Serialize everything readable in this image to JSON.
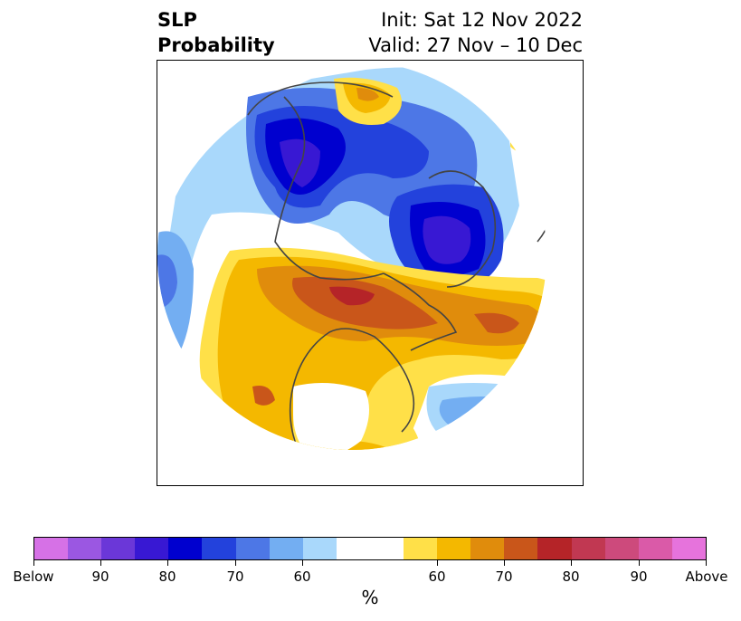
{
  "title": {
    "left_line1": "SLP",
    "left_line2": "Probability",
    "right_line1": "Init: Sat 12 Nov 2022",
    "right_line2": "Valid: 27 Nov – 10 Dec"
  },
  "colorbar": {
    "colors": [
      "#d671e6",
      "#9b57e2",
      "#6b37d8",
      "#3818d3",
      "#0000cf",
      "#2342dc",
      "#4d77e6",
      "#73aef2",
      "#a9d8fb",
      "#ffffff",
      "#ffe048",
      "#f4b800",
      "#e08c0c",
      "#c9561a",
      "#b52428",
      "#c13852",
      "#cd4a7c",
      "#da5aa8",
      "#e673dc"
    ],
    "tick_labels": [
      "Below",
      "90",
      "80",
      "70",
      "60",
      "60",
      "70",
      "80",
      "90",
      "Above"
    ],
    "unit_label": "%"
  },
  "map": {
    "projection": "polar-stereographic",
    "features": [
      "below-normal-pressure-north-atlantic",
      "below-normal-pressure-eurasia",
      "above-normal-pressure-alaska-arctic",
      "above-normal-pressure-north-america",
      "below-normal-pressure-gulf-of-alaska"
    ]
  }
}
